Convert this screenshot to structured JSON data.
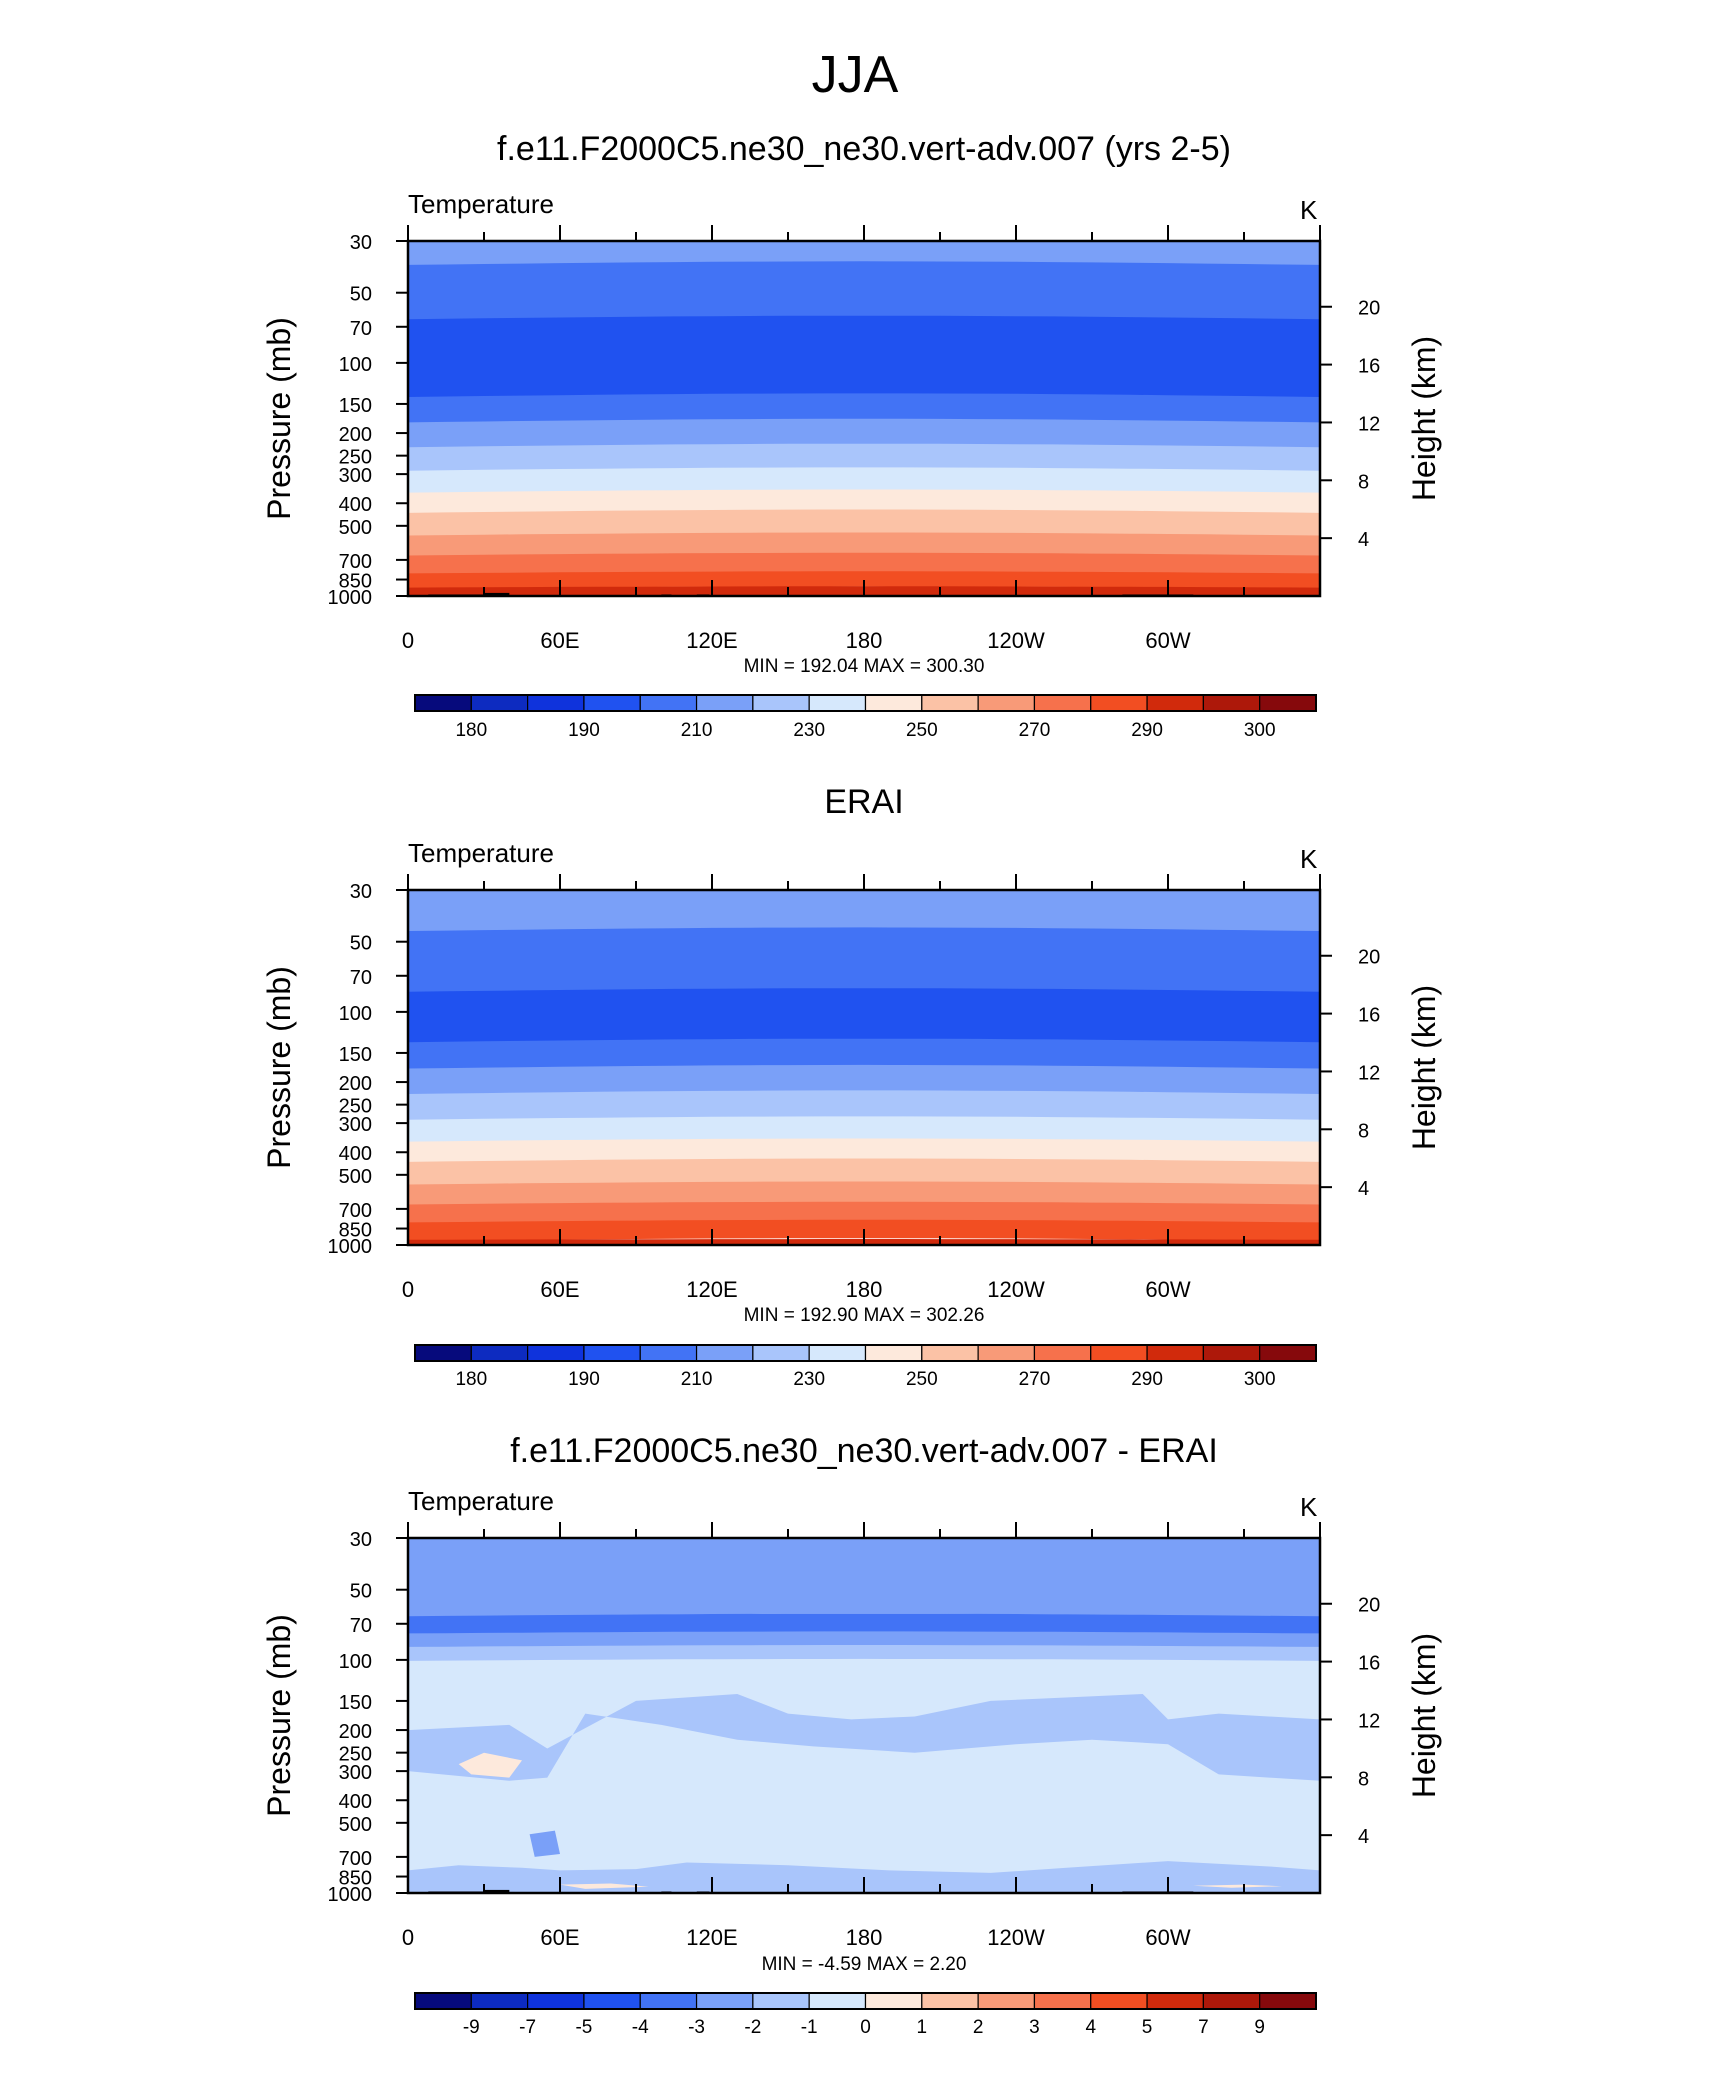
{
  "figure": {
    "title": "JJA",
    "colors": {
      "abs_palette": [
        "#060a7c",
        "#0d2bc0",
        "#0f33dc",
        "#2052f0",
        "#4273f5",
        "#7aa0f8",
        "#a9c5fb",
        "#d6e8fc",
        "#fde9dc",
        "#fbc2a6",
        "#f89a78",
        "#f6714c",
        "#f24e22",
        "#d12a0c",
        "#ad180a",
        "#86090c"
      ],
      "diff_palette": [
        "#060a7c",
        "#0d2bc0",
        "#0f33dc",
        "#2052f0",
        "#4273f5",
        "#7aa0f8",
        "#a9c5fb",
        "#d6e8fc",
        "#fde9dc",
        "#fbc2a6",
        "#f89a78",
        "#f6714c",
        "#f24e22",
        "#d12a0c",
        "#ad180a",
        "#86090c"
      ],
      "topography": "#000000"
    }
  },
  "chart_data": [
    {
      "type": "heatmap",
      "name": "model",
      "title": "f.e11.F2000C5.ne30_ne30.vert-adv.007 (yrs 2-5)",
      "left_string": "Temperature",
      "right_string": "K",
      "ylabel": "Pressure (mb)",
      "ylabel_right": "Height (km)",
      "x_ticks": [
        "0",
        "60E",
        "120E",
        "180",
        "120W",
        "60W"
      ],
      "y_ticks": [
        "30",
        "50",
        "70",
        "100",
        "150",
        "200",
        "250",
        "300",
        "400",
        "500",
        "700",
        "850",
        "1000"
      ],
      "y_ticks_right": [
        "20",
        "16",
        "12",
        "8",
        "4"
      ],
      "stats": "MIN = 192.04  MAX = 300.30",
      "min": 192.04,
      "max": 300.3,
      "colorbar_labels": [
        "180",
        "190",
        "210",
        "230",
        "250",
        "270",
        "290",
        "300"
      ],
      "bands": [
        {
          "p_top": 30,
          "p_bottom": 38,
          "value": 215,
          "class": 5
        },
        {
          "p_top": 38,
          "p_bottom": 65,
          "value": 205,
          "class": 4
        },
        {
          "p_top": 65,
          "p_bottom": 140,
          "value": 195,
          "class": 3
        },
        {
          "p_top": 140,
          "p_bottom": 180,
          "value": 205,
          "class": 4
        },
        {
          "p_top": 180,
          "p_bottom": 230,
          "value": 215,
          "class": 5
        },
        {
          "p_top": 230,
          "p_bottom": 290,
          "value": 225,
          "class": 6
        },
        {
          "p_top": 290,
          "p_bottom": 360,
          "value": 235,
          "class": 7
        },
        {
          "p_top": 360,
          "p_bottom": 440,
          "value": 245,
          "class": 8
        },
        {
          "p_top": 440,
          "p_bottom": 550,
          "value": 255,
          "class": 9
        },
        {
          "p_top": 550,
          "p_bottom": 670,
          "value": 265,
          "class": 10
        },
        {
          "p_top": 670,
          "p_bottom": 800,
          "value": 275,
          "class": 11
        },
        {
          "p_top": 800,
          "p_bottom": 920,
          "value": 285,
          "class": 12
        },
        {
          "p_top": 920,
          "p_bottom": 1000,
          "value": 292,
          "class": 13
        }
      ]
    },
    {
      "type": "heatmap",
      "name": "obs",
      "title": "ERAI",
      "left_string": "Temperature",
      "right_string": "K",
      "ylabel": "Pressure (mb)",
      "ylabel_right": "Height (km)",
      "x_ticks": [
        "0",
        "60E",
        "120E",
        "180",
        "120W",
        "60W"
      ],
      "y_ticks": [
        "30",
        "50",
        "70",
        "100",
        "150",
        "200",
        "250",
        "300",
        "400",
        "500",
        "700",
        "850",
        "1000"
      ],
      "y_ticks_right": [
        "20",
        "16",
        "12",
        "8",
        "4"
      ],
      "stats": "MIN = 192.90  MAX = 302.26",
      "min": 192.9,
      "max": 302.26,
      "colorbar_labels": [
        "180",
        "190",
        "210",
        "230",
        "250",
        "270",
        "290",
        "300"
      ],
      "bands": [
        {
          "p_top": 30,
          "p_bottom": 45,
          "value": 215,
          "class": 5
        },
        {
          "p_top": 45,
          "p_bottom": 82,
          "value": 205,
          "class": 4
        },
        {
          "p_top": 82,
          "p_bottom": 135,
          "value": 195,
          "class": 3
        },
        {
          "p_top": 135,
          "p_bottom": 175,
          "value": 205,
          "class": 4
        },
        {
          "p_top": 175,
          "p_bottom": 225,
          "value": 215,
          "class": 5
        },
        {
          "p_top": 225,
          "p_bottom": 290,
          "value": 225,
          "class": 6
        },
        {
          "p_top": 290,
          "p_bottom": 360,
          "value": 235,
          "class": 7
        },
        {
          "p_top": 360,
          "p_bottom": 440,
          "value": 245,
          "class": 8
        },
        {
          "p_top": 440,
          "p_bottom": 550,
          "value": 255,
          "class": 9
        },
        {
          "p_top": 550,
          "p_bottom": 670,
          "value": 265,
          "class": 10
        },
        {
          "p_top": 670,
          "p_bottom": 800,
          "value": 275,
          "class": 11
        },
        {
          "p_top": 800,
          "p_bottom": 950,
          "value": 285,
          "class": 12
        },
        {
          "p_top": 950,
          "p_bottom": 1000,
          "value": 293,
          "class": 13
        }
      ]
    },
    {
      "type": "heatmap",
      "name": "diff",
      "title": "f.e11.F2000C5.ne30_ne30.vert-adv.007 - ERAI",
      "left_string": "Temperature",
      "right_string": "K",
      "ylabel": "Pressure (mb)",
      "ylabel_right": "Height (km)",
      "x_ticks": [
        "0",
        "60E",
        "120E",
        "180",
        "120W",
        "60W"
      ],
      "y_ticks": [
        "30",
        "50",
        "70",
        "100",
        "150",
        "200",
        "250",
        "300",
        "400",
        "500",
        "700",
        "850",
        "1000"
      ],
      "y_ticks_right": [
        "20",
        "16",
        "12",
        "8",
        "4"
      ],
      "stats": "MIN =  -4.59  MAX =   2.20",
      "min": -4.59,
      "max": 2.2,
      "colorbar_labels": [
        "-9",
        "-7",
        "-5",
        "-4",
        "-3",
        "-2",
        "-1",
        "0",
        "1",
        "2",
        "3",
        "4",
        "5",
        "7",
        "9"
      ],
      "background_class": 7,
      "bands": [
        {
          "p_top": 30,
          "p_bottom": 65,
          "value": -2.5,
          "class": 5
        },
        {
          "p_top": 65,
          "p_bottom": 77,
          "value": -3.5,
          "class": 4
        },
        {
          "p_top": 77,
          "p_bottom": 88,
          "value": -2.5,
          "class": 5
        },
        {
          "p_top": 88,
          "p_bottom": 100,
          "value": -1.5,
          "class": 6
        }
      ],
      "regions": [
        {
          "class": 6,
          "value": -1.5,
          "points": [
            [
              0,
              200
            ],
            [
              40,
              190
            ],
            [
              55,
              240
            ],
            [
              90,
              150
            ],
            [
              130,
              140
            ],
            [
              150,
              170
            ],
            [
              175,
              180
            ],
            [
              200,
              175
            ],
            [
              230,
              150
            ],
            [
              290,
              140
            ],
            [
              300,
              180
            ],
            [
              320,
              170
            ],
            [
              360,
              180
            ],
            [
              360,
              330
            ],
            [
              320,
              310
            ],
            [
              300,
              230
            ],
            [
              270,
              220
            ],
            [
              240,
              230
            ],
            [
              200,
              250
            ],
            [
              160,
              235
            ],
            [
              130,
              220
            ],
            [
              100,
              190
            ],
            [
              70,
              170
            ],
            [
              55,
              320
            ],
            [
              40,
              330
            ],
            [
              0,
              300
            ]
          ]
        },
        {
          "class": 6,
          "value": -1.5,
          "points": [
            [
              0,
              1000
            ],
            [
              0,
              800
            ],
            [
              20,
              760
            ],
            [
              45,
              780
            ],
            [
              60,
              800
            ],
            [
              90,
              790
            ],
            [
              110,
              740
            ],
            [
              150,
              760
            ],
            [
              190,
              800
            ],
            [
              230,
              820
            ],
            [
              260,
              780
            ],
            [
              300,
              730
            ],
            [
              340,
              770
            ],
            [
              360,
              800
            ],
            [
              360,
              1000
            ]
          ]
        },
        {
          "class": 8,
          "value": 0.5,
          "points": [
            [
              20,
              280
            ],
            [
              30,
              250
            ],
            [
              45,
              270
            ],
            [
              40,
              320
            ],
            [
              25,
              310
            ]
          ]
        },
        {
          "class": 8,
          "value": 0.5,
          "points": [
            [
              60,
              920
            ],
            [
              80,
              910
            ],
            [
              95,
              940
            ],
            [
              70,
              960
            ]
          ]
        },
        {
          "class": 8,
          "value": 0.5,
          "points": [
            [
              310,
              930
            ],
            [
              330,
              920
            ],
            [
              345,
              935
            ],
            [
              325,
              950
            ]
          ]
        },
        {
          "class": 5,
          "value": -2.5,
          "points": [
            [
              48,
              560
            ],
            [
              58,
              540
            ],
            [
              60,
              680
            ],
            [
              50,
              700
            ]
          ]
        }
      ]
    }
  ]
}
